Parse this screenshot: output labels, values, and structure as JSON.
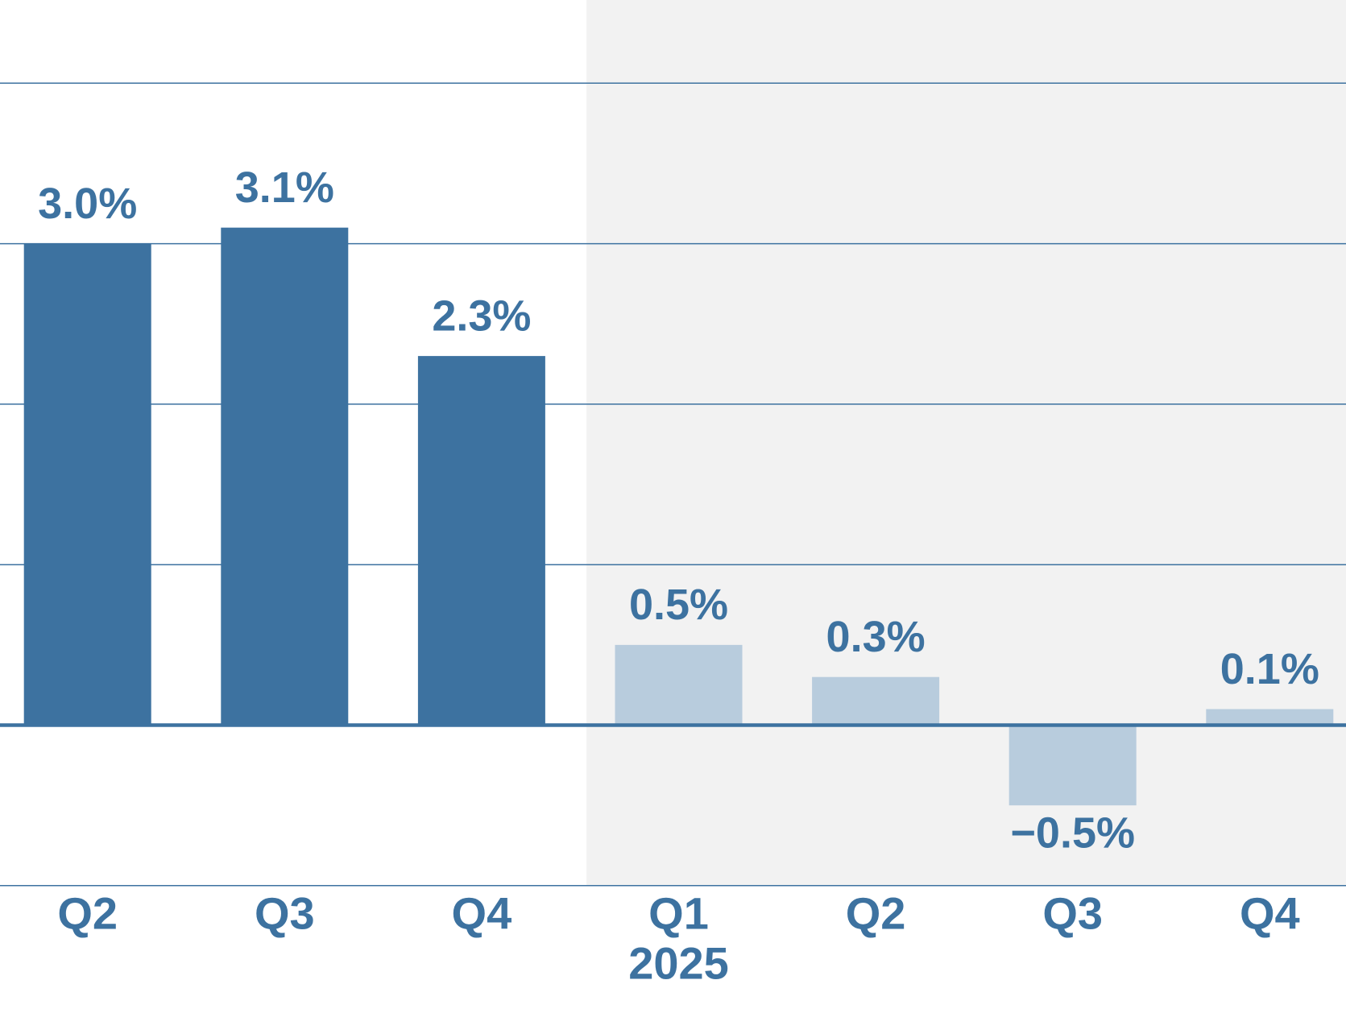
{
  "chart_data": {
    "type": "bar",
    "categories": [
      "Q2",
      "Q3",
      "Q4",
      "Q1",
      "Q2",
      "Q3",
      "Q4"
    ],
    "sublabels": [
      null,
      null,
      null,
      "2025",
      null,
      null,
      null
    ],
    "values": [
      3.0,
      3.1,
      2.3,
      0.5,
      0.3,
      -0.5,
      0.1
    ],
    "value_labels": [
      "3.0%",
      "3.1%",
      "2.3%",
      "0.5%",
      "0.3%",
      "−0.5%",
      "0.1%"
    ],
    "colors": [
      "#3d72a0",
      "#3d72a0",
      "#3d72a0",
      "#b8ccdd",
      "#b8ccdd",
      "#b8ccdd",
      "#b8ccdd"
    ],
    "shade": {
      "from_index": 3,
      "color": "#f2f2f2"
    },
    "ylim": [
      -1,
      4
    ],
    "yticks": [
      -1,
      0,
      1,
      2,
      3,
      4
    ],
    "grid": true
  }
}
